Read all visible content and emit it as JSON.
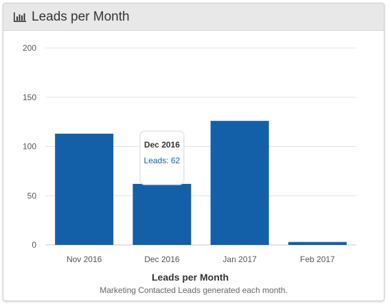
{
  "header": {
    "title": "Leads per Month",
    "icon": "bar-chart-icon"
  },
  "chart_data": {
    "type": "bar",
    "title": "Leads per Month",
    "subtitle": "Marketing Contacted Leads generated each month.",
    "xlabel": "",
    "ylabel": "",
    "categories": [
      "Nov 2016",
      "Dec 2016",
      "Jan 2017",
      "Feb 2017"
    ],
    "series": [
      {
        "name": "Leads",
        "values": [
          113,
          62,
          126,
          3
        ]
      }
    ],
    "ylim": [
      0,
      200
    ],
    "yticks": [
      0,
      50,
      100,
      150,
      200
    ],
    "grid": true,
    "legend": "none",
    "color": "#1460a8"
  },
  "tooltip": {
    "category": "Dec 2016",
    "label": "Leads: 62"
  }
}
